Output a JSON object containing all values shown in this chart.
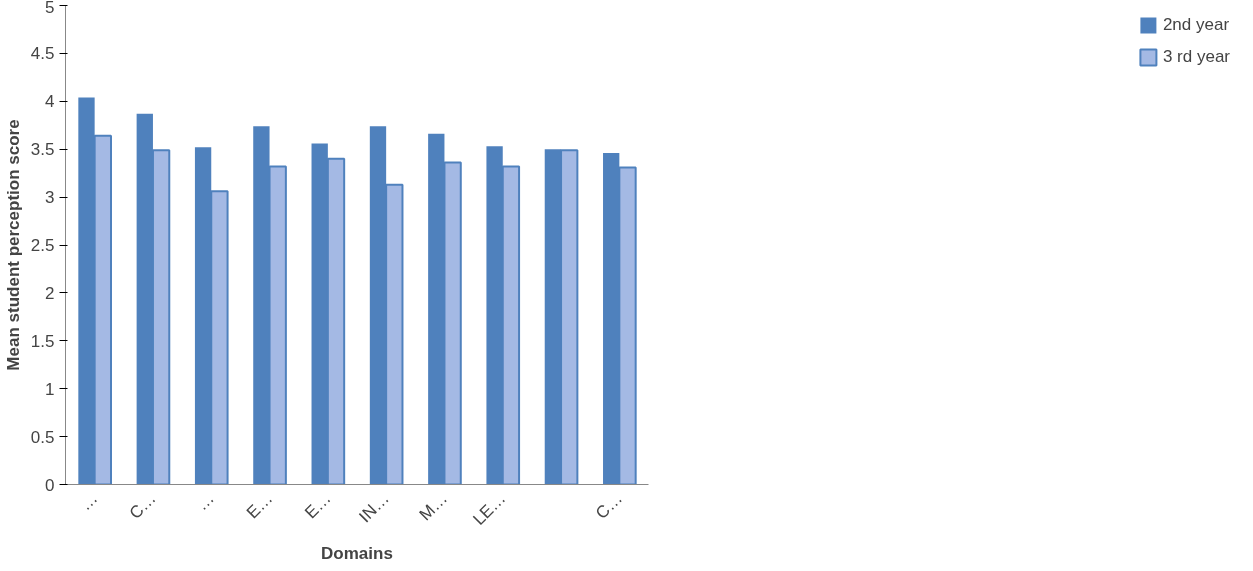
{
  "chart_data": {
    "type": "bar",
    "xlabel": "Domains",
    "ylabel": "Mean student perception score",
    "categories": [
      "…",
      "C…",
      "…",
      "E…",
      "E…",
      "IN…",
      "M…",
      "LE…",
      null,
      "C…"
    ],
    "series": [
      {
        "name": "2nd year",
        "color": "#4f81bd",
        "values": [
          4.04,
          3.87,
          3.52,
          3.74,
          3.56,
          3.74,
          3.66,
          3.53,
          3.5,
          3.46
        ]
      },
      {
        "name": "3 rd year",
        "color": "#a4b9e4",
        "values": [
          3.64,
          3.49,
          3.06,
          3.32,
          3.4,
          3.13,
          3.36,
          3.32,
          3.49,
          3.31
        ]
      }
    ],
    "ylim": [
      0,
      5
    ],
    "yticks": [
      0,
      0.5,
      1,
      1.5,
      2,
      2.5,
      3,
      3.5,
      4,
      4.5,
      5
    ],
    "grid": false,
    "legend": "right"
  }
}
